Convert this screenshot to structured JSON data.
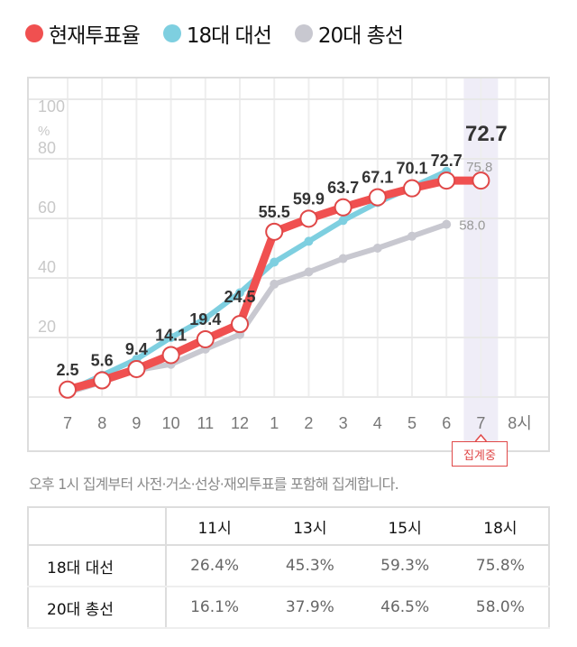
{
  "legend": [
    {
      "label": "현재투표율",
      "color": "#f05050"
    },
    {
      "label": "18대 대선",
      "color": "#7ecfe0"
    },
    {
      "label": "20대 총선",
      "color": "#c8c8d0"
    }
  ],
  "chart_data": {
    "type": "line",
    "x_labels": [
      "7",
      "8",
      "9",
      "10",
      "11",
      "12",
      "1",
      "2",
      "3",
      "4",
      "5",
      "6",
      "7",
      "8시"
    ],
    "y_ticks": [
      "20",
      "40",
      "60",
      "80",
      "100"
    ],
    "y_unit": "%",
    "ylim": [
      0,
      100
    ],
    "grid": true,
    "highlight_x": "7",
    "highlight_badge": "집계중",
    "series": [
      {
        "name": "현재투표율",
        "color": "#f05050",
        "values": [
          2.5,
          5.6,
          9.4,
          14.1,
          19.4,
          24.5,
          55.5,
          59.9,
          63.7,
          67.1,
          70.1,
          72.7,
          72.7
        ],
        "labels": [
          "2.5",
          "5.6",
          "9.4",
          "14.1",
          "19.4",
          "24.5",
          "55.5",
          "59.9",
          "63.7",
          "67.1",
          "70.1",
          "72.7",
          "72.7"
        ]
      },
      {
        "name": "18대 대선",
        "color": "#7ecfe0",
        "values": [
          2.0,
          7.3,
          12.7,
          20.0,
          26.4,
          35.0,
          45.3,
          52.3,
          59.3,
          65.3,
          70.5,
          75.8
        ],
        "end_label": "75.8"
      },
      {
        "name": "20대 총선",
        "color": "#c8c8d0",
        "values": [
          1.5,
          5.0,
          9.0,
          11.0,
          16.1,
          21.0,
          37.9,
          42.0,
          46.5,
          50.0,
          54.0,
          58.0
        ],
        "end_label": "58.0"
      }
    ]
  },
  "caption": "오후 1시 집계부터 사전·거소·선상·재외투표를 포함해 집계합니다.",
  "table": {
    "headers": [
      "11시",
      "13시",
      "15시",
      "18시"
    ],
    "rows": [
      {
        "label": "18대 대선",
        "values": [
          "26.4%",
          "45.3%",
          "59.3%",
          "75.8%"
        ]
      },
      {
        "label": "20대 총선",
        "values": [
          "16.1%",
          "37.9%",
          "46.5%",
          "58.0%"
        ]
      }
    ]
  }
}
